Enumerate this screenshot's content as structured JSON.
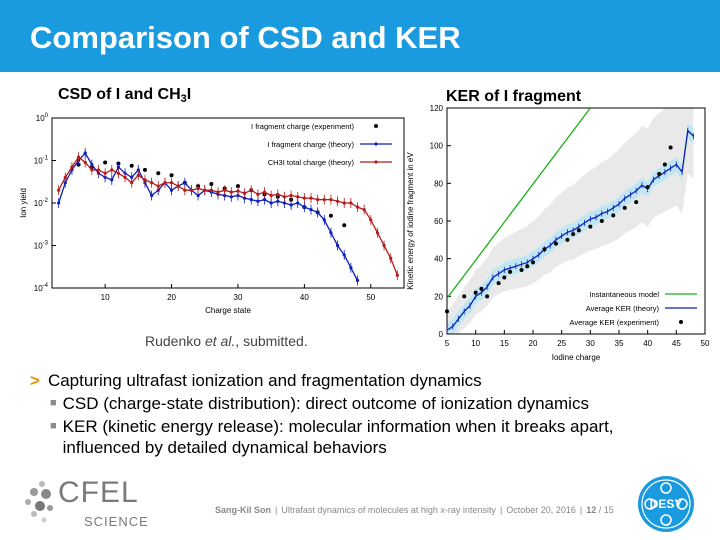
{
  "slide_title": "Comparison of CSD and KER",
  "left_panel": {
    "title_main": "CSD of I and CH",
    "title_sub": "3",
    "title_end": "I"
  },
  "right_panel": {
    "title": "KER of I fragment"
  },
  "citation": {
    "author": "Rudenko ",
    "etal": "et al.",
    "rest": ", submitted."
  },
  "bullets": {
    "main": "Capturing ultrafast ionization and fragmentation dynamics",
    "sub1": "CSD (charge-state distribution): direct outcome of ionization dynamics",
    "sub2": "KER (kinetic energy release): molecular information when it breaks apart, influenced by detailed dynamical behaviors"
  },
  "footer": {
    "author": "Sang-Kil Son",
    "talk": "Ultrafast dynamics of molecules at high x-ray intensity",
    "date": "October 20, 2016",
    "page": "12",
    "total": "/ 15"
  },
  "logos": {
    "cfel": "CFEL",
    "science": "SCIENCE",
    "desy": "DESY"
  },
  "colors": {
    "title_bar": "#1a9be0",
    "theory_blue": "#0b1fb8",
    "theory_red": "#b41c1c",
    "instant_green": "#1bb21b",
    "bullet_arrow": "#f28c00"
  },
  "chart_data": [
    {
      "type": "line",
      "xlabel": "Charge state",
      "ylabel": "Ion yield",
      "xlim": [
        2,
        55
      ],
      "ylim": [
        0.0001,
        1
      ],
      "yscale": "log",
      "x_ticks": [
        10,
        20,
        30,
        40,
        50
      ],
      "y_ticks": [
        {
          "base": "10",
          "exp": "0",
          "value": 1
        },
        {
          "base": "10",
          "exp": "-1",
          "value": 0.1
        },
        {
          "base": "10",
          "exp": "-2",
          "value": 0.01
        },
        {
          "base": "10",
          "exp": "-3",
          "value": 0.001
        },
        {
          "base": "10",
          "exp": "-4",
          "value": 0.0001
        }
      ],
      "legend_position": "top-right",
      "series": [
        {
          "name": "I fragment charge (experiment)",
          "style": "points",
          "x": [
            6,
            8,
            10,
            12,
            14,
            16,
            18,
            20,
            22,
            24,
            26,
            28,
            30,
            32,
            34,
            36,
            38,
            40,
            42,
            44,
            46
          ],
          "y": [
            0.08,
            0.07,
            0.09,
            0.085,
            0.075,
            0.06,
            0.05,
            0.045,
            0.03,
            0.025,
            0.028,
            0.022,
            0.025,
            0.02,
            0.016,
            0.014,
            0.012,
            0.008,
            0.006,
            0.005,
            0.003
          ]
        },
        {
          "name": "I fragment charge (theory)",
          "style": "line",
          "x": [
            3,
            4,
            5,
            6,
            7,
            8,
            9,
            10,
            11,
            12,
            13,
            14,
            15,
            16,
            17,
            18,
            19,
            20,
            21,
            22,
            23,
            24,
            25,
            26,
            27,
            28,
            29,
            30,
            31,
            32,
            33,
            34,
            35,
            36,
            37,
            38,
            39,
            40,
            41,
            42,
            43,
            44,
            45,
            46,
            47,
            48
          ],
          "y": [
            0.01,
            0.03,
            0.06,
            0.1,
            0.15,
            0.08,
            0.05,
            0.04,
            0.035,
            0.07,
            0.05,
            0.04,
            0.06,
            0.03,
            0.015,
            0.02,
            0.03,
            0.02,
            0.025,
            0.03,
            0.02,
            0.015,
            0.02,
            0.018,
            0.016,
            0.015,
            0.014,
            0.015,
            0.013,
            0.012,
            0.011,
            0.012,
            0.01,
            0.011,
            0.01,
            0.009,
            0.01,
            0.008,
            0.007,
            0.006,
            0.004,
            0.002,
            0.001,
            0.0006,
            0.0003,
            0.00015
          ]
        },
        {
          "name": "CH3I total charge (theory)",
          "style": "line",
          "x": [
            3,
            4,
            5,
            6,
            7,
            8,
            9,
            10,
            11,
            12,
            13,
            14,
            15,
            16,
            17,
            18,
            19,
            20,
            21,
            22,
            23,
            24,
            25,
            26,
            27,
            28,
            29,
            30,
            31,
            32,
            33,
            34,
            35,
            36,
            37,
            38,
            39,
            40,
            41,
            42,
            43,
            44,
            45,
            46,
            47,
            48,
            49,
            50,
            51,
            52,
            53,
            54
          ],
          "y": [
            0.02,
            0.04,
            0.07,
            0.12,
            0.09,
            0.06,
            0.06,
            0.05,
            0.06,
            0.05,
            0.04,
            0.03,
            0.045,
            0.035,
            0.03,
            0.025,
            0.03,
            0.03,
            0.025,
            0.02,
            0.02,
            0.022,
            0.02,
            0.02,
            0.018,
            0.02,
            0.018,
            0.019,
            0.017,
            0.02,
            0.016,
            0.018,
            0.015,
            0.016,
            0.014,
            0.015,
            0.014,
            0.013,
            0.013,
            0.012,
            0.012,
            0.012,
            0.011,
            0.01,
            0.01,
            0.008,
            0.007,
            0.004,
            0.002,
            0.001,
            0.0005,
            0.0002
          ]
        }
      ]
    },
    {
      "type": "line",
      "xlabel": "Iodine charge",
      "ylabel": "Kinetic energy of iodine fragment in eV",
      "xlim": [
        5,
        50
      ],
      "ylim": [
        0,
        120
      ],
      "x_ticks": [
        5,
        10,
        15,
        20,
        25,
        30,
        35,
        40,
        45,
        50
      ],
      "y_ticks": [
        0,
        20,
        40,
        60,
        80,
        100,
        120
      ],
      "legend_position": "bottom-right",
      "series": [
        {
          "name": "Instantaneous model",
          "style": "line",
          "x": [
            5,
            30
          ],
          "y": [
            19,
            120
          ]
        },
        {
          "name": "Average KER (theory)",
          "style": "line",
          "x": [
            5,
            6,
            7,
            8,
            9,
            10,
            11,
            12,
            13,
            14,
            15,
            16,
            17,
            18,
            19,
            20,
            21,
            22,
            23,
            24,
            25,
            26,
            27,
            28,
            29,
            30,
            31,
            32,
            33,
            34,
            35,
            36,
            37,
            38,
            39,
            40,
            41,
            42,
            43,
            44,
            45,
            46,
            47,
            48
          ],
          "y": [
            2,
            4,
            8,
            12,
            15,
            20,
            22,
            25,
            30,
            32,
            34,
            35,
            36,
            37,
            38,
            40,
            42,
            45,
            47,
            50,
            52,
            54,
            55,
            57,
            59,
            61,
            62,
            64,
            65,
            67,
            69,
            72,
            74,
            76,
            79,
            77,
            82,
            84,
            86,
            88,
            90,
            86,
            108,
            105
          ]
        },
        {
          "name": "Average KER (experiment)",
          "style": "points",
          "x": [
            5,
            8,
            10,
            11,
            12,
            14,
            15,
            16,
            18,
            19,
            20,
            22,
            24,
            26,
            27,
            28,
            30,
            32,
            34,
            36,
            38,
            40,
            42,
            43,
            44
          ],
          "y": [
            12,
            20,
            22,
            24,
            20,
            27,
            30,
            33,
            34,
            36,
            38,
            45,
            48,
            50,
            53,
            55,
            57,
            60,
            63,
            67,
            70,
            78,
            85,
            90,
            99
          ]
        }
      ]
    }
  ]
}
